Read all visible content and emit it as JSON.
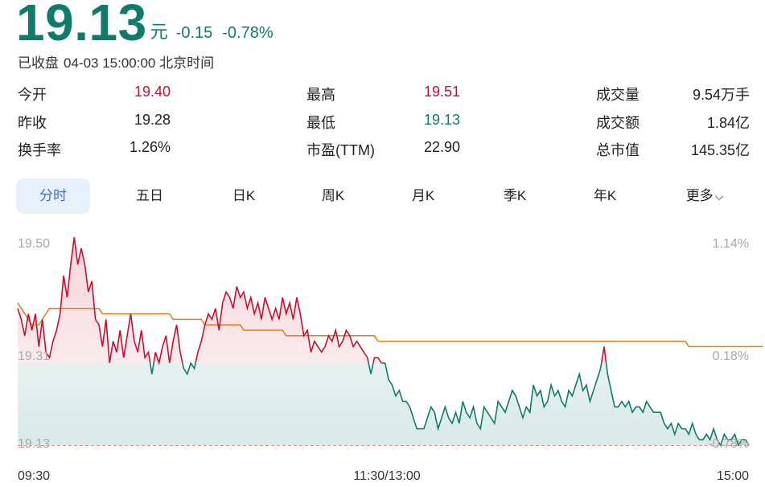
{
  "header": {
    "price": "19.13",
    "unit": "元",
    "change": "-0.15",
    "change_pct": "-0.78%",
    "status_label": "已收盘",
    "status_time": "04-03 15:00:00 北京时间"
  },
  "stats": [
    {
      "label": "今开",
      "value": "19.40",
      "color": "#c8102e"
    },
    {
      "label": "最高",
      "value": "19.51",
      "color": "#c8102e"
    },
    {
      "label": "成交量",
      "value": "9.54万手",
      "color": "#222222"
    },
    {
      "label": "昨收",
      "value": "19.28",
      "color": "#222222"
    },
    {
      "label": "最低",
      "value": "19.13",
      "color": "#0f7b6a"
    },
    {
      "label": "成交额",
      "value": "1.84亿",
      "color": "#222222"
    },
    {
      "label": "换手率",
      "value": "1.26%",
      "color": "#222222"
    },
    {
      "label": "市盈(TTM)",
      "value": "22.90",
      "color": "#222222"
    },
    {
      "label": "总市值",
      "value": "145.35亿",
      "color": "#222222"
    }
  ],
  "tabs": [
    "分时",
    "五日",
    "日K",
    "周K",
    "月K",
    "季K",
    "年K",
    "更多"
  ],
  "active_tab": "分时",
  "chart_data": {
    "type": "line",
    "prev_close": 19.28,
    "ylim": [
      19.13,
      19.5
    ],
    "y_ticks_left": [
      "19.50",
      "19.31",
      "19.13"
    ],
    "y_ticks_right": [
      "1.14%",
      "0.18%",
      "-0.78%"
    ],
    "x_ticks": [
      "09:30",
      "11:30/13:00",
      "15:00"
    ],
    "colors": {
      "up": "#c8102e",
      "down": "#0f7b6a",
      "avg": "#e07b1a",
      "dashed": "#e88a8a"
    },
    "series": [
      {
        "role": "price",
        "values": [
          19.38,
          19.36,
          19.33,
          19.37,
          19.34,
          19.37,
          19.31,
          19.36,
          19.3,
          19.29,
          19.32,
          19.34,
          19.37,
          19.44,
          19.4,
          19.46,
          19.51,
          19.46,
          19.49,
          19.46,
          19.41,
          19.43,
          19.36,
          19.35,
          19.31,
          19.36,
          19.28,
          19.32,
          19.3,
          19.34,
          19.29,
          19.33,
          19.37,
          19.32,
          19.3,
          19.34,
          19.29,
          19.3,
          19.26,
          19.3,
          19.28,
          19.31,
          19.33,
          19.28,
          19.32,
          19.35,
          19.3,
          19.27,
          19.26,
          19.28,
          19.27,
          19.3,
          19.32,
          19.35,
          19.37,
          19.36,
          19.38,
          19.34,
          19.39,
          19.41,
          19.4,
          19.38,
          19.42,
          19.4,
          19.41,
          19.38,
          19.4,
          19.37,
          19.39,
          19.36,
          19.4,
          19.38,
          19.36,
          19.38,
          19.36,
          19.4,
          19.37,
          19.39,
          19.36,
          19.4,
          19.37,
          19.33,
          19.34,
          19.3,
          19.32,
          19.31,
          19.3,
          19.31,
          19.33,
          19.32,
          19.34,
          19.31,
          19.32,
          19.34,
          19.33,
          19.31,
          19.32,
          19.31,
          19.3,
          19.29,
          19.26,
          19.29,
          19.29,
          19.28,
          19.28,
          19.25,
          19.24,
          19.22,
          19.23,
          19.21,
          19.21,
          19.2,
          19.18,
          19.16,
          19.16,
          19.16,
          19.18,
          19.2,
          19.19,
          19.16,
          19.18,
          19.2,
          19.18,
          19.17,
          19.19,
          19.17,
          19.21,
          19.19,
          19.18,
          19.2,
          19.17,
          19.16,
          19.2,
          19.19,
          19.18,
          19.17,
          19.21,
          19.2,
          19.19,
          19.21,
          19.23,
          19.22,
          19.2,
          19.18,
          19.2,
          19.19,
          19.24,
          19.22,
          19.23,
          19.2,
          19.21,
          19.24,
          19.22,
          19.23,
          19.21,
          19.2,
          19.23,
          19.22,
          19.24,
          19.26,
          19.23,
          19.24,
          19.21,
          19.23,
          19.25,
          19.27,
          19.31,
          19.26,
          19.23,
          19.2,
          19.2,
          19.21,
          19.2,
          19.21,
          19.19,
          19.2,
          19.2,
          19.19,
          19.21,
          19.2,
          19.19,
          19.19,
          19.19,
          19.17,
          19.16,
          19.17,
          19.15,
          19.17,
          19.16,
          19.16,
          19.15,
          19.17,
          19.15,
          19.14,
          19.14,
          19.15,
          19.14,
          19.16,
          19.14,
          19.13,
          19.15,
          19.14,
          19.14,
          19.15,
          19.13,
          19.14,
          19.14,
          19.13
        ]
      },
      {
        "role": "avg",
        "values": [
          19.39,
          19.38,
          19.37,
          19.36,
          19.35,
          19.35,
          19.35,
          19.36,
          19.37,
          19.38,
          19.38,
          19.38,
          19.38,
          19.38,
          19.38,
          19.38,
          19.38,
          19.38,
          19.38,
          19.38,
          19.38,
          19.38,
          19.38,
          19.38,
          19.37,
          19.37,
          19.37,
          19.37,
          19.37,
          19.37,
          19.37,
          19.37,
          19.37,
          19.37,
          19.37,
          19.37,
          19.37,
          19.37,
          19.37,
          19.37,
          19.37,
          19.37,
          19.37,
          19.37,
          19.36,
          19.36,
          19.36,
          19.36,
          19.36,
          19.36,
          19.36,
          19.36,
          19.36,
          19.35,
          19.35,
          19.35,
          19.35,
          19.35,
          19.35,
          19.35,
          19.35,
          19.35,
          19.35,
          19.35,
          19.34,
          19.34,
          19.34,
          19.34,
          19.34,
          19.34,
          19.34,
          19.34,
          19.34,
          19.34,
          19.34,
          19.34,
          19.33,
          19.33,
          19.33,
          19.33,
          19.33,
          19.33,
          19.33,
          19.33,
          19.33,
          19.33,
          19.33,
          19.33,
          19.33,
          19.33,
          19.33,
          19.33,
          19.33,
          19.33,
          19.33,
          19.33,
          19.33,
          19.33,
          19.33,
          19.33,
          19.33,
          19.33,
          19.32,
          19.32,
          19.32,
          19.32,
          19.32,
          19.32,
          19.32,
          19.32,
          19.32,
          19.32,
          19.32,
          19.32,
          19.32,
          19.32,
          19.32,
          19.32,
          19.32,
          19.32,
          19.32,
          19.32,
          19.32,
          19.32,
          19.32,
          19.32,
          19.32,
          19.32,
          19.32,
          19.32,
          19.32,
          19.32,
          19.32,
          19.32,
          19.32,
          19.32,
          19.32,
          19.32,
          19.32,
          19.32,
          19.32,
          19.32,
          19.32,
          19.32,
          19.32,
          19.32,
          19.32,
          19.32,
          19.32,
          19.32,
          19.32,
          19.32,
          19.32,
          19.32,
          19.32,
          19.32,
          19.32,
          19.32,
          19.32,
          19.32,
          19.32,
          19.32,
          19.32,
          19.32,
          19.32,
          19.32,
          19.32,
          19.32,
          19.32,
          19.32,
          19.32,
          19.32,
          19.32,
          19.32,
          19.32,
          19.32,
          19.32,
          19.32,
          19.32,
          19.32,
          19.32,
          19.32,
          19.32,
          19.32,
          19.32,
          19.32,
          19.32,
          19.32,
          19.32,
          19.32,
          19.31,
          19.31,
          19.31,
          19.31,
          19.31,
          19.31,
          19.31,
          19.31,
          19.31,
          19.31,
          19.31,
          19.31,
          19.31,
          19.31,
          19.31,
          19.31,
          19.31,
          19.31,
          19.31,
          19.31,
          19.31,
          19.31
        ]
      }
    ]
  }
}
